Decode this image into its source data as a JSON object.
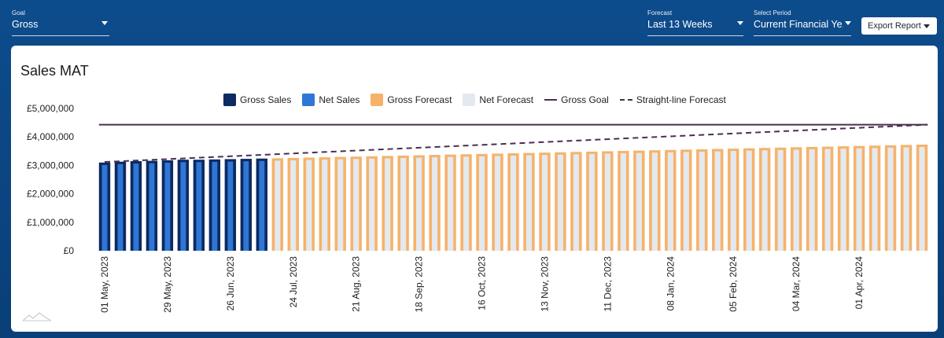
{
  "header": {
    "goal": {
      "label": "Goal",
      "value": "Gross"
    },
    "forecast": {
      "label": "Forecast",
      "value": "Last 13 Weeks"
    },
    "period": {
      "label": "Select Period",
      "value": "Current Financial Ye..."
    },
    "export_label": "Export Report"
  },
  "colors": {
    "gross_sales": "#0d2a63",
    "net_sales": "#2f77d4",
    "gross_forecast": "#f6b26b",
    "net_forecast": "#e3e9ee",
    "gross_goal": "#4a2f4f",
    "straight_line": "#4a2f4f"
  },
  "chart_data": {
    "type": "bar",
    "title": "Sales MAT",
    "legend": [
      "Gross Sales",
      "Net Sales",
      "Gross Forecast",
      "Net Forecast",
      "Gross Goal",
      "Straight-line Forecast"
    ],
    "legend_position": "top",
    "y_ticks": [
      "£0",
      "£1,000,000",
      "£2,000,000",
      "£3,000,000",
      "£4,000,000",
      "£5,000,000"
    ],
    "ylim": [
      0,
      5000000
    ],
    "x_tick_labels": [
      "01 May, 2023",
      "29 May, 2023",
      "26 Jun, 2023",
      "24 Jul, 2023",
      "21 Aug, 2023",
      "18 Sep, 2023",
      "16 Oct, 2023",
      "13 Nov, 2023",
      "11 Dec, 2023",
      "08 Jan, 2024",
      "05 Feb, 2024",
      "04 Mar, 2024",
      "01 Apr, 2024"
    ],
    "actual_weeks": 11,
    "gross_sales": [
      3100000,
      3130000,
      3150000,
      3160000,
      3180000,
      3200000,
      3200000,
      3210000,
      3220000,
      3230000,
      3240000
    ],
    "net_sales": [
      3070000,
      3100000,
      3120000,
      3130000,
      3150000,
      3170000,
      3170000,
      3180000,
      3190000,
      3200000,
      3210000
    ],
    "forecast_weeks": 42,
    "gross_forecast_start": 3250000,
    "gross_forecast_end": 3730000,
    "gross_goal": 4430000,
    "straight_line_start": 3120000,
    "straight_line_end": 4430000
  }
}
